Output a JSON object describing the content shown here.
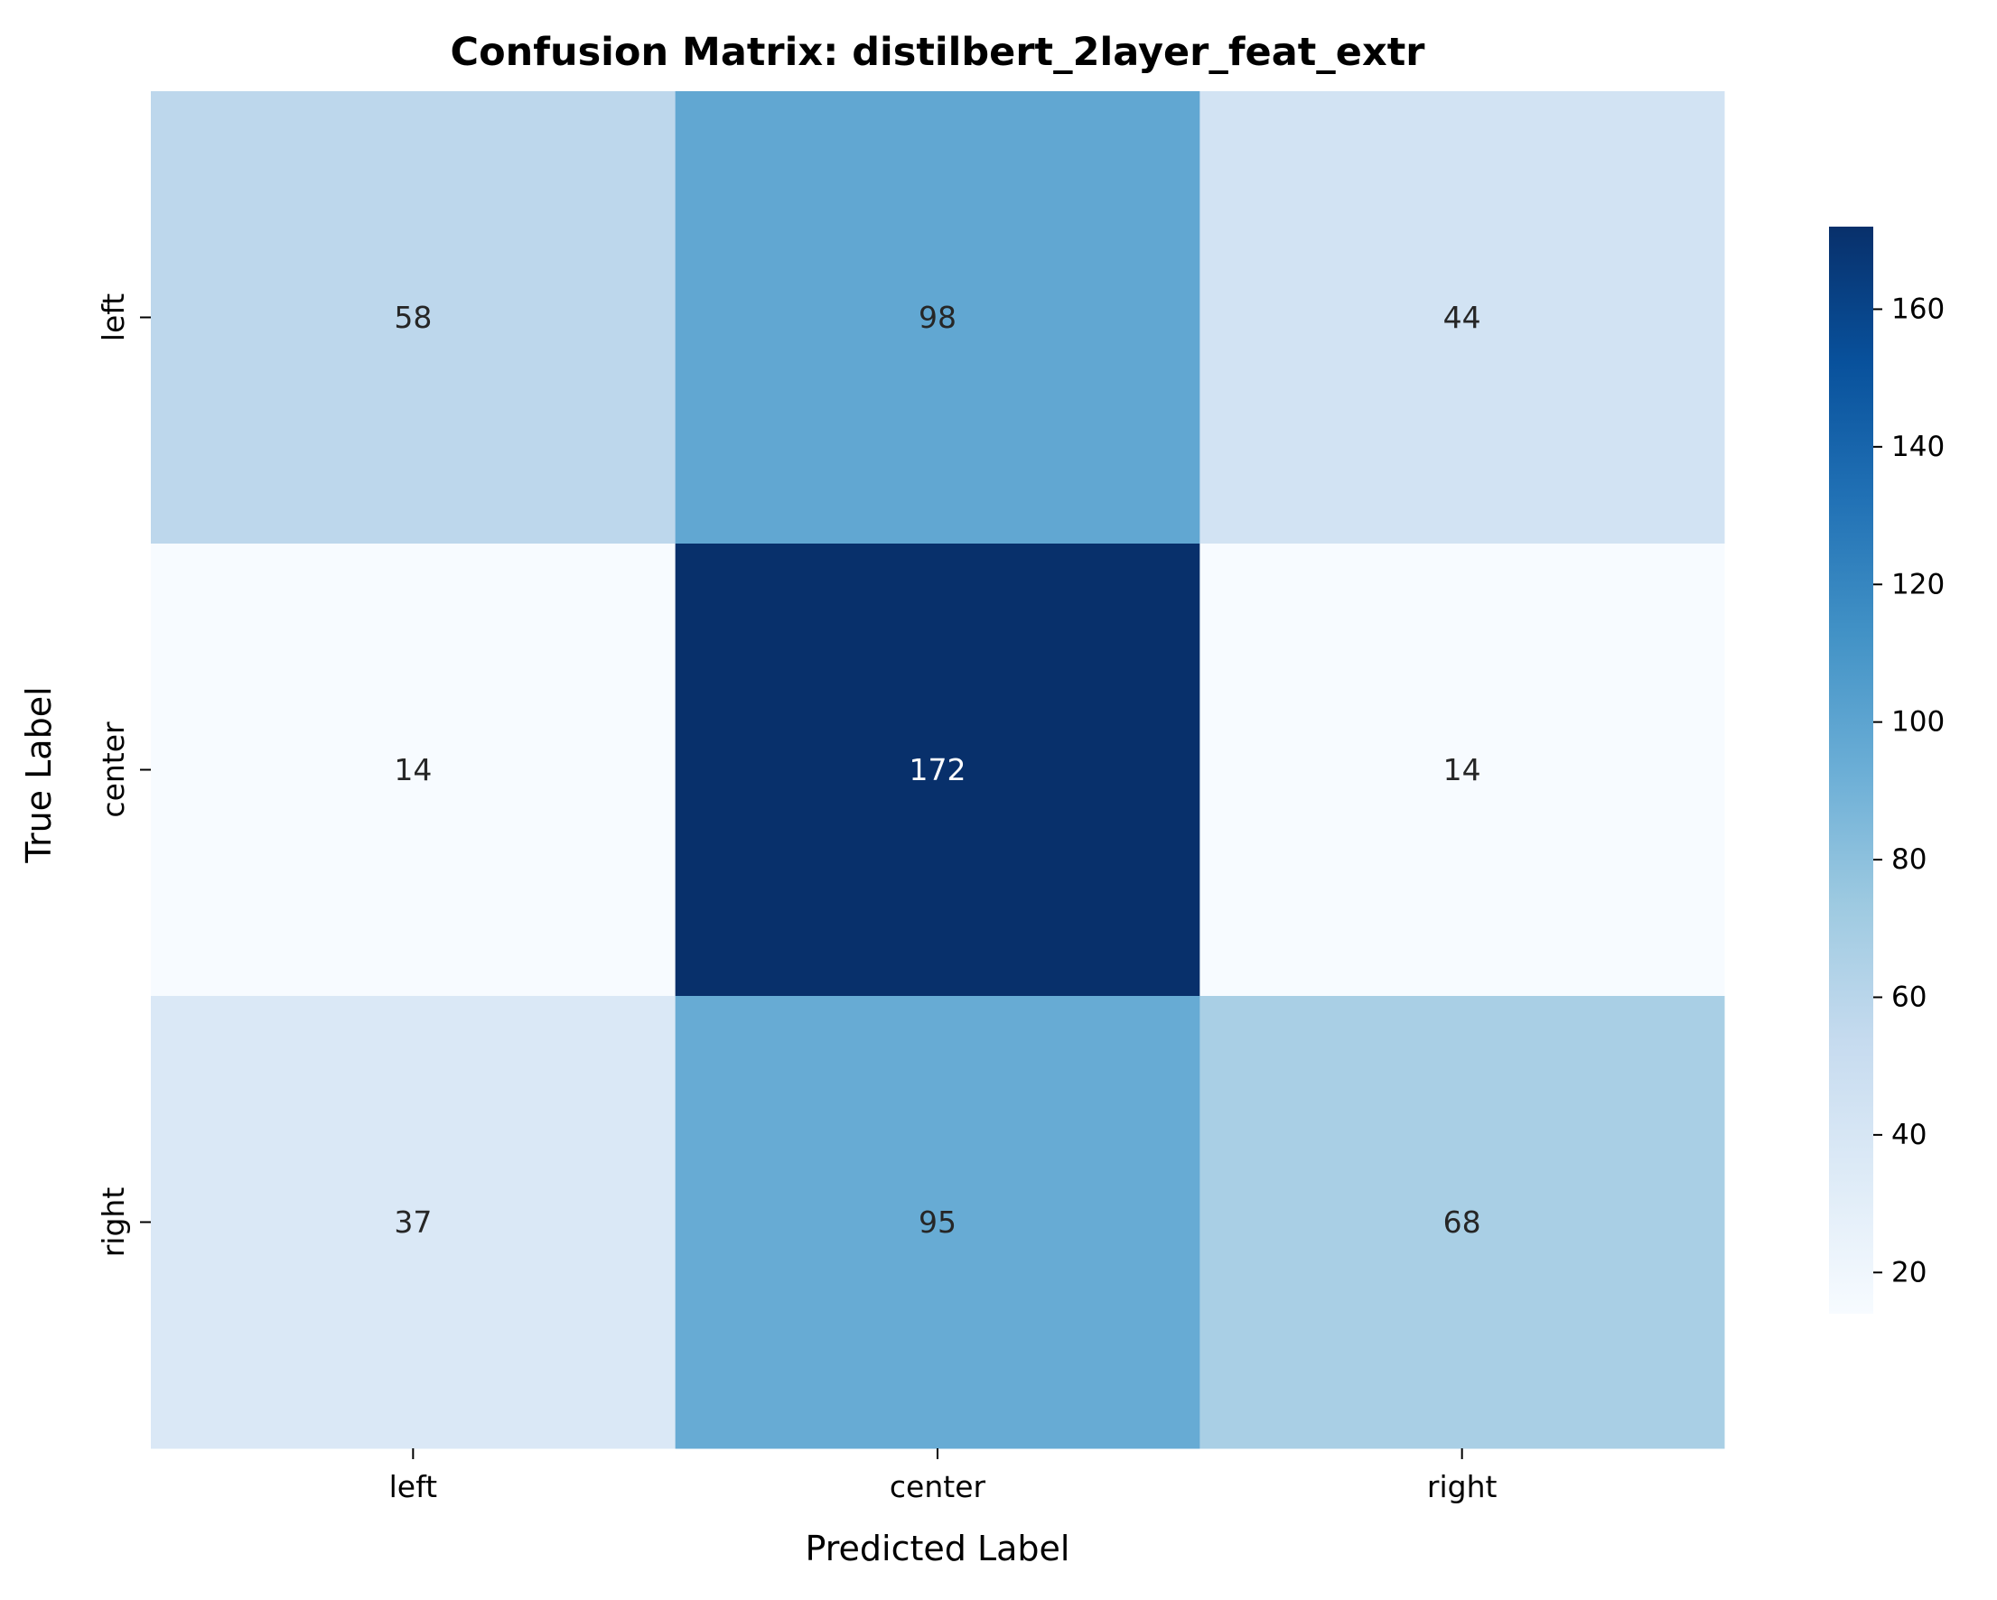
{
  "chart_data": {
    "type": "heatmap",
    "title": "Confusion Matrix: distilbert_2layer_feat_extr",
    "xlabel": "Predicted Label",
    "ylabel": "True Label",
    "x_categories": [
      "left",
      "center",
      "right"
    ],
    "y_categories": [
      "left",
      "center",
      "right"
    ],
    "values": [
      [
        58,
        98,
        44
      ],
      [
        14,
        172,
        14
      ],
      [
        37,
        95,
        68
      ]
    ],
    "colormap": "Blues",
    "colorbar": {
      "range": [
        14,
        172
      ],
      "ticks": [
        20,
        40,
        60,
        80,
        100,
        120,
        140,
        160
      ]
    }
  }
}
